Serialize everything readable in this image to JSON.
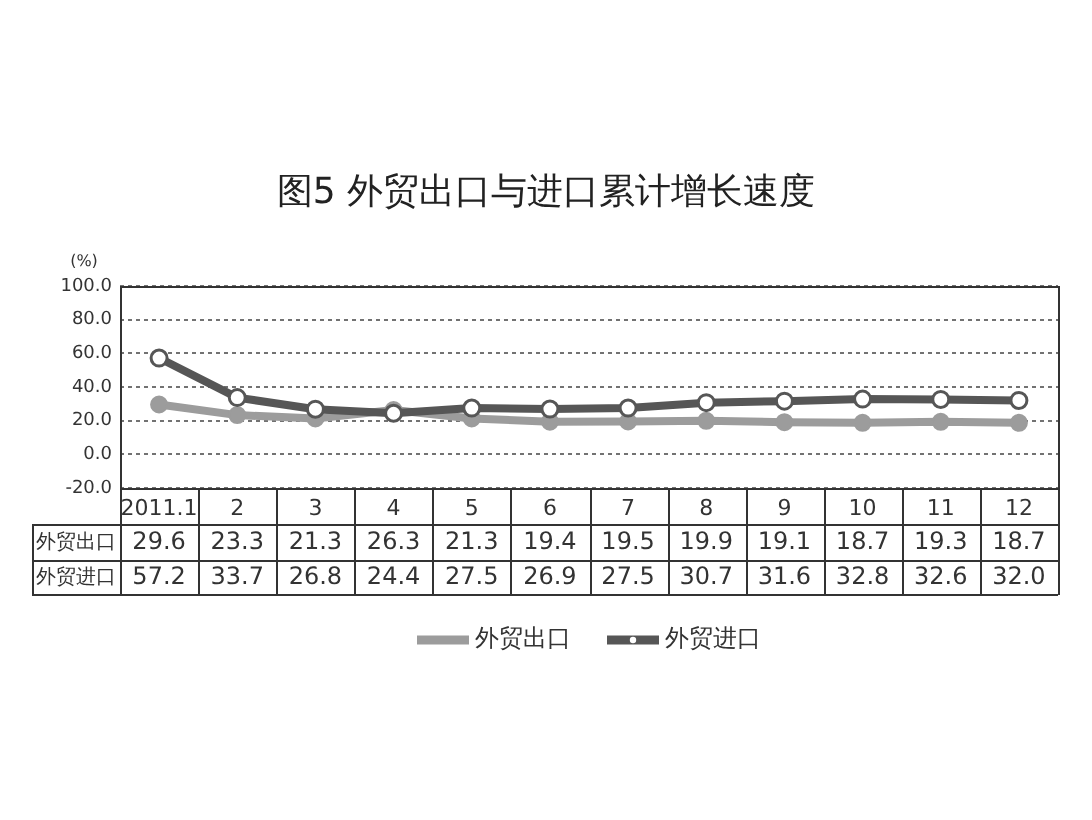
{
  "chart_data": {
    "type": "line",
    "title": "图5 外贸出口与进口累计增长速度",
    "ylabel": "(%)",
    "categories": [
      "2011.1",
      "2",
      "3",
      "4",
      "5",
      "6",
      "7",
      "8",
      "9",
      "10",
      "11",
      "12"
    ],
    "series": [
      {
        "name": "外贸出口",
        "color": "#9c9c9c",
        "values": [
          29.6,
          23.3,
          21.3,
          26.3,
          21.3,
          19.4,
          19.5,
          19.9,
          19.1,
          18.7,
          19.3,
          18.7
        ],
        "value_labels": [
          "29.6",
          "23.3",
          "21.3",
          "26.3",
          "21.3",
          "19.4",
          "19.5",
          "19.9",
          "19.1",
          "18.7",
          "19.3",
          "18.7"
        ]
      },
      {
        "name": "外贸进口",
        "color": "#565656",
        "values": [
          57.2,
          33.7,
          26.8,
          24.4,
          27.5,
          26.9,
          27.5,
          30.7,
          31.6,
          32.8,
          32.6,
          32.0
        ],
        "value_labels": [
          "57.2",
          "33.7",
          "26.8",
          "24.4",
          "27.5",
          "26.9",
          "27.5",
          "30.7",
          "31.6",
          "32.8",
          "32.6",
          "32.0"
        ]
      }
    ],
    "ylim": [
      -20,
      100
    ],
    "yticks": [
      {
        "value": -20,
        "label": "-20.0"
      },
      {
        "value": 0,
        "label": "0.0"
      },
      {
        "value": 20,
        "label": "20.0"
      },
      {
        "value": 40,
        "label": "40.0"
      },
      {
        "value": 60,
        "label": "60.0"
      },
      {
        "value": 80,
        "label": "80.0"
      },
      {
        "value": 100,
        "label": "100.0"
      }
    ],
    "grid": "y",
    "legend": "bottom",
    "marker": "circle",
    "line_style": "solid"
  }
}
